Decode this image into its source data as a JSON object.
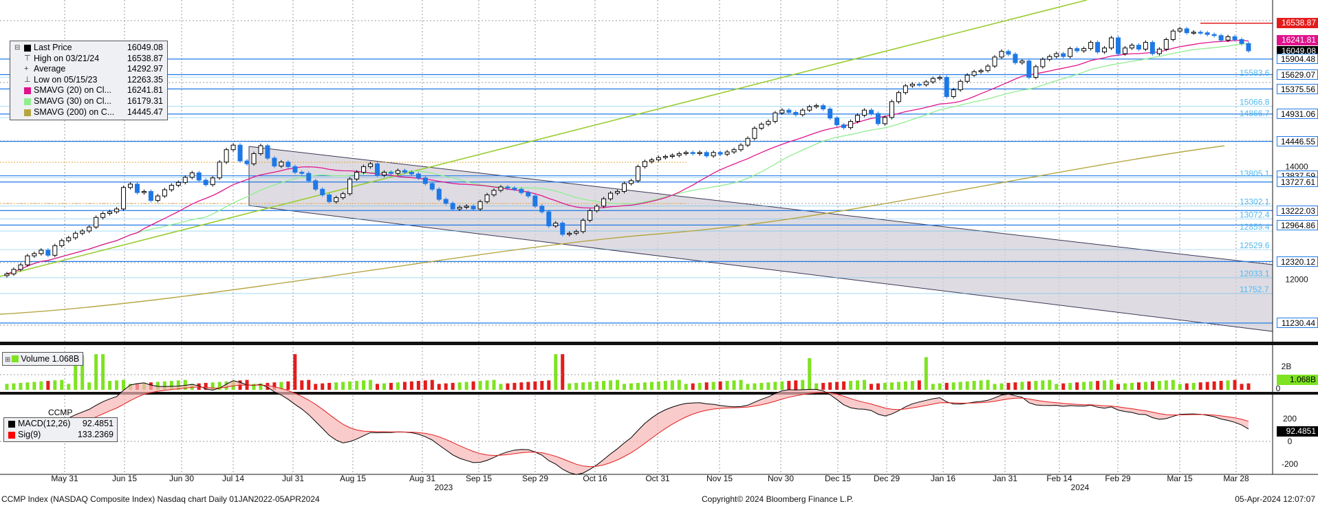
{
  "legend": {
    "rows": [
      {
        "label": "Last Price",
        "value": "16049.08",
        "color": "#000000",
        "mark": ""
      },
      {
        "label": "High on 03/21/24",
        "value": "16538.87",
        "color": "",
        "mark": "⊤"
      },
      {
        "label": "Average",
        "value": "14292.97",
        "color": "",
        "mark": "+"
      },
      {
        "label": "Low on 05/15/23",
        "value": "12263.35",
        "color": "",
        "mark": "⊥"
      },
      {
        "label": "SMAVG (20)  on Cl...",
        "value": "16241.81",
        "color": "#e0138c",
        "mark": ""
      },
      {
        "label": "SMAVG (30)  on Cl...",
        "value": "16179.31",
        "color": "#90ee90",
        "mark": ""
      },
      {
        "label": "SMAVG (200)  on C...",
        "value": "14445.47",
        "color": "#b5a642",
        "mark": ""
      }
    ]
  },
  "volume_box": {
    "label": "Volume",
    "value": "1.068B"
  },
  "macd": {
    "title": "CCMP",
    "rows": [
      {
        "label": "MACD(12,26)",
        "value": "92.4851",
        "color": "#000000"
      },
      {
        "label": "Sig(9)",
        "value": "133.2369",
        "color": "#ff0000"
      }
    ]
  },
  "footer": {
    "left": "CCMP Index (NASDAQ Composite Index) Nasdaq chart  Daily 01JAN2022-05APR2024",
    "center": "Copyright© 2024 Bloomberg Finance L.P.",
    "right": "05-Apr-2024 12:07:07"
  },
  "colors": {
    "up_candle": "#000000",
    "down_candle": "#1e78e6",
    "level_line": "#1e78e6",
    "fib_label": "#50b8f0",
    "sma20": "#e0138c",
    "sma30": "#90ee90",
    "sma200": "#b5a642",
    "trend": "#9acd32",
    "volume_up": "#7ee321",
    "volume_down": "#e31c1c",
    "high_tag": "#e31c1c",
    "sma20_tag": "#e0138c"
  },
  "chart_data": {
    "type": "candlestick",
    "price_axis": {
      "ticks": [
        12000,
        14000
      ],
      "range": [
        10900,
        16950
      ]
    },
    "level_tags": [
      "16538.87",
      "16241.81",
      "16049.08",
      "15904.48",
      "15629.07",
      "15375.56",
      "14931.06",
      "14446.55",
      "13837.59",
      "13727.61",
      "13222.03",
      "12964.86",
      "12320.12",
      "11230.44"
    ],
    "fib_labels": [
      "15583.6",
      "15066.8",
      "14866.7",
      "13805.1",
      "13302.1",
      "13072.4",
      "12859.4",
      "12529.6",
      "12033.1",
      "11752.7"
    ],
    "x_axis": {
      "tick_labels": [
        "May 31",
        "Jun 15",
        "Jun 30",
        "Jul 14",
        "Jul 31",
        "Aug 15",
        "Aug 31",
        "Sep 15",
        "Sep 29",
        "Oct 16",
        "Oct 31",
        "Nov 15",
        "Nov 30",
        "Dec 15",
        "Dec 29",
        "Jan 16",
        "Jan 31",
        "Feb 14",
        "Feb 29",
        "Mar 15",
        "Mar 28"
      ],
      "year_labels": [
        "2023",
        "2024"
      ]
    },
    "closes": [
      12100,
      12180,
      12260,
      12420,
      12460,
      12520,
      12430,
      12600,
      12690,
      12740,
      12820,
      12860,
      12930,
      13100,
      13170,
      13200,
      13250,
      13630,
      13690,
      13540,
      13560,
      13400,
      13480,
      13590,
      13670,
      13720,
      13810,
      13890,
      13760,
      13680,
      13800,
      14080,
      14300,
      14380,
      14100,
      14050,
      14230,
      14370,
      14150,
      14010,
      14080,
      14000,
      13900,
      13880,
      13750,
      13600,
      13500,
      13380,
      13450,
      13520,
      13780,
      13900,
      14000,
      14050,
      13850,
      13900,
      13880,
      13930,
      13900,
      13870,
      13800,
      13700,
      13600,
      13420,
      13350,
      13250,
      13280,
      13300,
      13250,
      13380,
      13500,
      13580,
      13640,
      13620,
      13600,
      13540,
      13480,
      13300,
      13200,
      12950,
      13000,
      12800,
      12820,
      12850,
      13050,
      13220,
      13300,
      13430,
      13530,
      13560,
      13700,
      13750,
      14000,
      14090,
      14120,
      14160,
      14180,
      14200,
      14230,
      14250,
      14230,
      14250,
      14190,
      14250,
      14220,
      14260,
      14300,
      14380,
      14500,
      14680,
      14750,
      14800,
      14950,
      15000,
      14960,
      14920,
      15000,
      15060,
      15080,
      15020,
      14860,
      14740,
      14690,
      14800,
      14910,
      15000,
      14940,
      14760,
      14870,
      15150,
      15310,
      15430,
      15460,
      15450,
      15500,
      15560,
      15580,
      15240,
      15360,
      15510,
      15620,
      15680,
      15700,
      15780,
      15940,
      16040,
      15990,
      15840,
      15870,
      15580,
      15770,
      15900,
      15950,
      16000,
      15950,
      16090,
      16050,
      16090,
      16200,
      16030,
      16100,
      16280,
      16000,
      16100,
      16150,
      16080,
      16200,
      16000,
      16080,
      16250,
      16400,
      16440,
      16370,
      16380,
      16370,
      16340,
      16320,
      16240,
      16300,
      16250,
      16180,
      16050
    ]
  }
}
